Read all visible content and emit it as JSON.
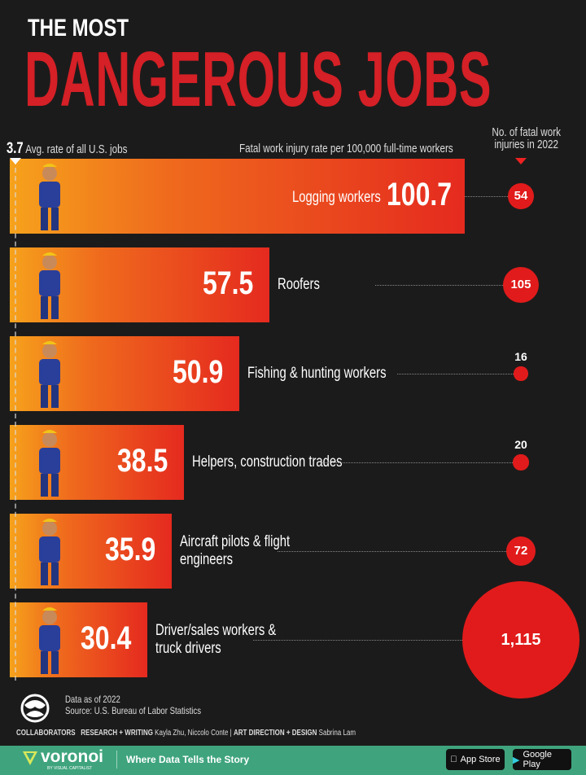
{
  "title_line1": "THE MOST",
  "title_line2": "DANGEROUS JOBS",
  "avg": {
    "value": "3.7",
    "label": "Avg. rate of all U.S. jobs"
  },
  "axis_label": "Fatal work injury rate per 100,000 full-time workers",
  "count_label": "No. of fatal work injuries in 2022",
  "chart_data": {
    "type": "bar",
    "orientation": "horizontal",
    "title": "THE MOST DANGEROUS JOBS",
    "categories": [
      "Logging workers",
      "Roofers",
      "Fishing & hunting workers",
      "Helpers, construction trades",
      "Aircraft pilots & flight engineers",
      "Driver/sales workers & truck drivers"
    ],
    "series": [
      {
        "name": "Fatal work injury rate per 100,000 full-time workers",
        "values": [
          100.7,
          57.5,
          50.9,
          38.5,
          35.9,
          30.4
        ],
        "display": [
          "100.7",
          "57.5",
          "50.9",
          "38.5",
          "35.9",
          "30.4"
        ]
      },
      {
        "name": "No. of fatal work injuries in 2022",
        "values": [
          54,
          105,
          16,
          20,
          72,
          1115
        ],
        "display": [
          "54",
          "105",
          "16",
          "20",
          "72",
          "1,115"
        ]
      }
    ],
    "reference_line": {
      "value": 3.7,
      "label": "Avg. rate of all U.S. jobs"
    },
    "colors": {
      "bar_start": "#f6a21c",
      "bar_end": "#e52a1f",
      "bubble": "#e11b1b"
    }
  },
  "footer": {
    "data_as_of": "Data as of 2022",
    "source": "Source: U.S. Bureau of Labor Statistics",
    "collaborators": "COLLABORATORS",
    "research": "RESEARCH + WRITING",
    "research_names": "Kayla Zhu, Niccolo Conte",
    "art": "ART DIRECTION + DESIGN",
    "art_names": "Sabrina Lam",
    "brand": "voronoi",
    "brand_sub": "BY VISUAL CAPITALIST",
    "tagline": "Where Data Tells the Story",
    "app_store": "App Store",
    "google_play": "Google Play"
  }
}
